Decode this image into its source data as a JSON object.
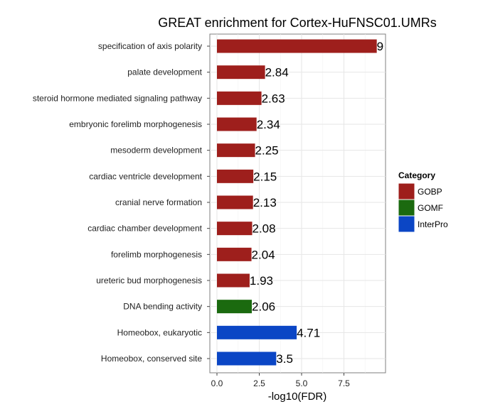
{
  "chart_data": {
    "type": "bar",
    "orientation": "horizontal",
    "title": "GREAT enrichment for Cortex-HuFNSC01.UMRs",
    "xlabel": "-log10(FDR)",
    "ylabel": "",
    "xlim": [
      0,
      9.5
    ],
    "xticks": [
      0,
      2.5,
      5,
      7.5
    ],
    "xtick_labels": [
      "0.0",
      "2.5",
      "5.0",
      "7.5"
    ],
    "grid": true,
    "legend": {
      "title": "Category",
      "position": "right",
      "items": [
        {
          "name": "GOBP",
          "color": "#9e1f1c"
        },
        {
          "name": "GOMF",
          "color": "#1b6a0f"
        },
        {
          "name": "InterPro",
          "color": "#0b46c5"
        }
      ]
    },
    "bars": [
      {
        "label": "specification of axis polarity",
        "value": 9.44,
        "display": "9",
        "category": "GOBP"
      },
      {
        "label": "palate development",
        "value": 2.84,
        "display": "2.84",
        "category": "GOBP"
      },
      {
        "label": "steroid hormone mediated signaling pathway",
        "value": 2.63,
        "display": "2.63",
        "category": "GOBP"
      },
      {
        "label": "embryonic forelimb morphogenesis",
        "value": 2.34,
        "display": "2.34",
        "category": "GOBP"
      },
      {
        "label": "mesoderm development",
        "value": 2.25,
        "display": "2.25",
        "category": "GOBP"
      },
      {
        "label": "cardiac ventricle development",
        "value": 2.15,
        "display": "2.15",
        "category": "GOBP"
      },
      {
        "label": "cranial nerve formation",
        "value": 2.13,
        "display": "2.13",
        "category": "GOBP"
      },
      {
        "label": "cardiac chamber development",
        "value": 2.08,
        "display": "2.08",
        "category": "GOBP"
      },
      {
        "label": "forelimb morphogenesis",
        "value": 2.04,
        "display": "2.04",
        "category": "GOBP"
      },
      {
        "label": "ureteric bud morphogenesis",
        "value": 1.93,
        "display": "1.93",
        "category": "GOBP"
      },
      {
        "label": "DNA bending activity",
        "value": 2.06,
        "display": "2.06",
        "category": "GOMF"
      },
      {
        "label": "Homeobox, eukaryotic",
        "value": 4.71,
        "display": "4.71",
        "category": "InterPro"
      },
      {
        "label": "Homeobox, conserved site",
        "value": 3.5,
        "display": "3.5",
        "category": "InterPro"
      }
    ]
  }
}
